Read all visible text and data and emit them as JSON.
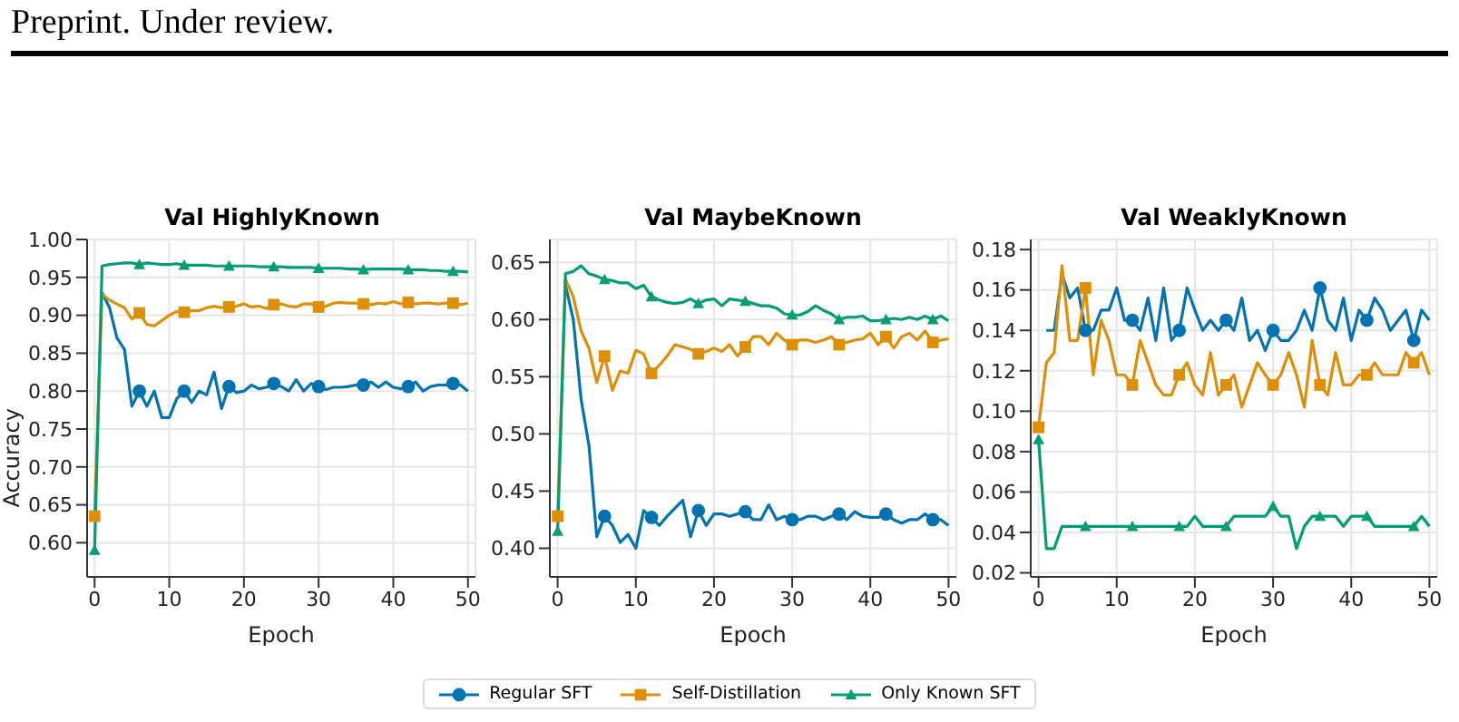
{
  "chart_data": [
    {
      "type": "line",
      "title": "Val HighlyKnown",
      "xlabel": "Epoch",
      "ylabel": "Accuracy",
      "annotations": [
        "Preprint. Under review."
      ],
      "x": [
        0,
        1,
        2,
        3,
        4,
        5,
        6,
        7,
        8,
        9,
        10,
        11,
        12,
        13,
        14,
        15,
        16,
        17,
        18,
        19,
        20,
        21,
        22,
        23,
        24,
        25,
        26,
        27,
        28,
        29,
        30,
        31,
        32,
        33,
        34,
        35,
        36,
        37,
        38,
        39,
        40,
        41,
        42,
        43,
        44,
        45,
        46,
        47,
        48,
        49,
        50
      ],
      "series": [
        {
          "name": "Regular SFT",
          "color": "#0173b2",
          "values": [
            null,
            0.93,
            0.91,
            0.87,
            0.855,
            0.78,
            0.8,
            0.78,
            0.8,
            0.765,
            0.765,
            0.79,
            0.8,
            0.785,
            0.8,
            0.795,
            0.825,
            0.777,
            0.806,
            0.798,
            0.8,
            0.808,
            0.803,
            0.805,
            0.81,
            0.806,
            0.8,
            0.815,
            0.8,
            0.81,
            0.806,
            0.802,
            0.805,
            0.805,
            0.806,
            0.808,
            0.808,
            0.812,
            0.805,
            0.812,
            0.805,
            0.803,
            0.806,
            0.812,
            0.8,
            0.806,
            0.808,
            0.808,
            0.81,
            0.808,
            0.8
          ]
        },
        {
          "name": "Self-Distillation",
          "color": "#de8f05",
          "values": [
            0.635,
            0.928,
            0.92,
            0.915,
            0.91,
            0.895,
            0.903,
            0.888,
            0.886,
            0.893,
            0.9,
            0.905,
            0.904,
            0.906,
            0.906,
            0.91,
            0.912,
            0.91,
            0.911,
            0.912,
            0.915,
            0.911,
            0.912,
            0.909,
            0.914,
            0.915,
            0.912,
            0.911,
            0.915,
            0.915,
            0.911,
            0.912,
            0.916,
            0.917,
            0.916,
            0.916,
            0.915,
            0.914,
            0.916,
            0.915,
            0.918,
            0.915,
            0.917,
            0.915,
            0.916,
            0.916,
            0.915,
            0.916,
            0.916,
            0.914,
            0.916
          ]
        },
        {
          "name": "Only Known SFT",
          "color": "#029e73",
          "values": [
            0.59,
            0.965,
            0.967,
            0.968,
            0.969,
            0.969,
            0.967,
            0.969,
            0.968,
            0.967,
            0.967,
            0.968,
            0.966,
            0.966,
            0.966,
            0.966,
            0.965,
            0.965,
            0.965,
            0.965,
            0.965,
            0.965,
            0.964,
            0.964,
            0.964,
            0.964,
            0.963,
            0.963,
            0.963,
            0.963,
            0.962,
            0.962,
            0.962,
            0.962,
            0.961,
            0.961,
            0.96,
            0.961,
            0.961,
            0.961,
            0.961,
            0.961,
            0.96,
            0.96,
            0.96,
            0.959,
            0.959,
            0.958,
            0.958,
            0.958,
            0.957
          ]
        }
      ],
      "xlim": [
        -1,
        51
      ],
      "xticks": [
        0,
        10,
        20,
        30,
        40,
        50
      ],
      "ylim": [
        0.555,
        1.0
      ],
      "yticks": [
        {
          "value": 0.6,
          "label": "0.60"
        },
        0.65,
        {
          "value": 0.7,
          "label": "0.70"
        },
        0.75,
        {
          "value": 0.8,
          "label": "0.80"
        },
        0.85,
        {
          "value": 0.9,
          "label": "0.90"
        },
        0.95,
        {
          "value": 1.0,
          "label": "1.00"
        }
      ],
      "grid": true,
      "line_style": "solid",
      "legend": "bottom"
    },
    {
      "type": "line",
      "title": "Val MaybeKnown",
      "xlabel": "Epoch",
      "x": [
        0,
        1,
        2,
        3,
        4,
        5,
        6,
        7,
        8,
        9,
        10,
        11,
        12,
        13,
        14,
        15,
        16,
        17,
        18,
        19,
        20,
        21,
        22,
        23,
        24,
        25,
        26,
        27,
        28,
        29,
        30,
        31,
        32,
        33,
        34,
        35,
        36,
        37,
        38,
        39,
        40,
        41,
        42,
        43,
        44,
        45,
        46,
        47,
        48,
        49,
        50
      ],
      "series": [
        {
          "color": "#0173b2",
          "values": [
            null,
            0.63,
            0.6,
            0.53,
            0.49,
            0.41,
            0.428,
            0.42,
            0.405,
            0.412,
            0.4,
            0.433,
            0.427,
            0.42,
            0.428,
            0.435,
            0.442,
            0.41,
            0.433,
            0.42,
            0.43,
            0.43,
            0.428,
            0.43,
            0.432,
            0.425,
            0.425,
            0.438,
            0.425,
            0.428,
            0.425,
            0.425,
            0.428,
            0.428,
            0.425,
            0.428,
            0.43,
            0.425,
            0.432,
            0.428,
            0.427,
            0.427,
            0.43,
            0.425,
            0.422,
            0.425,
            0.425,
            0.43,
            0.425,
            0.425,
            0.42
          ]
        },
        {
          "color": "#de8f05",
          "values": [
            0.428,
            0.635,
            0.62,
            0.59,
            0.575,
            0.545,
            0.568,
            0.538,
            0.555,
            0.553,
            0.573,
            0.57,
            0.553,
            0.56,
            0.568,
            0.578,
            0.576,
            0.574,
            0.57,
            0.572,
            0.575,
            0.572,
            0.578,
            0.568,
            0.576,
            0.585,
            0.585,
            0.578,
            0.588,
            0.582,
            0.578,
            0.582,
            0.582,
            0.58,
            0.582,
            0.585,
            0.578,
            0.58,
            0.582,
            0.583,
            0.588,
            0.578,
            0.585,
            0.575,
            0.585,
            0.588,
            0.582,
            0.59,
            0.58,
            0.582,
            0.583
          ]
        },
        {
          "color": "#029e73",
          "values": [
            0.415,
            0.64,
            0.642,
            0.647,
            0.64,
            0.638,
            0.635,
            0.634,
            0.632,
            0.632,
            0.627,
            0.63,
            0.62,
            0.617,
            0.615,
            0.614,
            0.615,
            0.618,
            0.614,
            0.617,
            0.618,
            0.612,
            0.618,
            0.617,
            0.616,
            0.614,
            0.612,
            0.612,
            0.61,
            0.605,
            0.604,
            0.604,
            0.607,
            0.612,
            0.608,
            0.605,
            0.6,
            0.602,
            0.602,
            0.603,
            0.599,
            0.599,
            0.6,
            0.601,
            0.6,
            0.602,
            0.6,
            0.603,
            0.6,
            0.603,
            0.599
          ]
        }
      ],
      "xlim": [
        -1,
        51
      ],
      "xticks": [
        0,
        10,
        20,
        30,
        40,
        50
      ],
      "ylim": [
        0.375,
        0.67
      ],
      "yticks": [
        {
          "value": 0.4,
          "label": "0.40"
        },
        0.45,
        {
          "value": 0.5,
          "label": "0.50"
        },
        0.55,
        {
          "value": 0.6,
          "label": "0.60"
        },
        0.65
      ],
      "grid": true,
      "line_style": "solid"
    },
    {
      "type": "line",
      "title": "Val WeaklyKnown",
      "xlabel": "Epoch",
      "x": [
        0,
        1,
        2,
        3,
        4,
        5,
        6,
        7,
        8,
        9,
        10,
        11,
        12,
        13,
        14,
        15,
        16,
        17,
        18,
        19,
        20,
        21,
        22,
        23,
        24,
        25,
        26,
        27,
        28,
        29,
        30,
        31,
        32,
        33,
        34,
        35,
        36,
        37,
        38,
        39,
        40,
        41,
        42,
        43,
        44,
        45,
        46,
        47,
        48,
        49,
        50
      ],
      "series": [
        {
          "color": "#0173b2",
          "values": [
            null,
            0.14,
            0.14,
            0.168,
            0.156,
            0.161,
            0.14,
            0.14,
            0.15,
            0.15,
            0.161,
            0.145,
            0.145,
            0.14,
            0.156,
            0.135,
            0.161,
            0.135,
            0.14,
            0.161,
            0.15,
            0.14,
            0.145,
            0.14,
            0.145,
            0.14,
            0.156,
            0.135,
            0.14,
            0.13,
            0.14,
            0.135,
            0.135,
            0.14,
            0.15,
            0.14,
            0.161,
            0.145,
            0.14,
            0.156,
            0.135,
            0.15,
            0.145,
            0.156,
            0.15,
            0.14,
            0.145,
            0.15,
            0.135,
            0.15,
            0.145
          ]
        },
        {
          "color": "#de8f05",
          "values": [
            0.092,
            0.124,
            0.129,
            0.172,
            0.135,
            0.135,
            0.161,
            0.118,
            0.145,
            0.135,
            0.118,
            0.118,
            0.113,
            0.135,
            0.124,
            0.113,
            0.108,
            0.108,
            0.118,
            0.124,
            0.113,
            0.108,
            0.129,
            0.108,
            0.113,
            0.118,
            0.102,
            0.113,
            0.124,
            0.118,
            0.113,
            0.118,
            0.129,
            0.118,
            0.102,
            0.135,
            0.113,
            0.108,
            0.129,
            0.113,
            0.113,
            0.118,
            0.118,
            0.124,
            0.118,
            0.118,
            0.118,
            0.129,
            0.124,
            0.129,
            0.118
          ]
        },
        {
          "color": "#029e73",
          "values": [
            0.086,
            0.032,
            0.032,
            0.043,
            0.043,
            0.043,
            0.043,
            0.043,
            0.043,
            0.043,
            0.043,
            0.043,
            0.043,
            0.043,
            0.043,
            0.043,
            0.043,
            0.043,
            0.043,
            0.043,
            0.048,
            0.043,
            0.043,
            0.043,
            0.043,
            0.048,
            0.048,
            0.048,
            0.048,
            0.048,
            0.053,
            0.048,
            0.048,
            0.032,
            0.043,
            0.048,
            0.048,
            0.048,
            0.048,
            0.043,
            0.048,
            0.048,
            0.048,
            0.043,
            0.043,
            0.043,
            0.043,
            0.043,
            0.043,
            0.048,
            0.043
          ]
        }
      ],
      "xlim": [
        -1,
        51
      ],
      "xticks": [
        0,
        10,
        20,
        30,
        40,
        50
      ],
      "ylim": [
        0.018,
        0.185
      ],
      "yticks": [
        0.02,
        0.04,
        0.06,
        0.08,
        {
          "value": 0.1,
          "label": "0.10"
        },
        0.12,
        0.14,
        0.16,
        0.18
      ],
      "grid": true,
      "line_style": "solid"
    }
  ]
}
